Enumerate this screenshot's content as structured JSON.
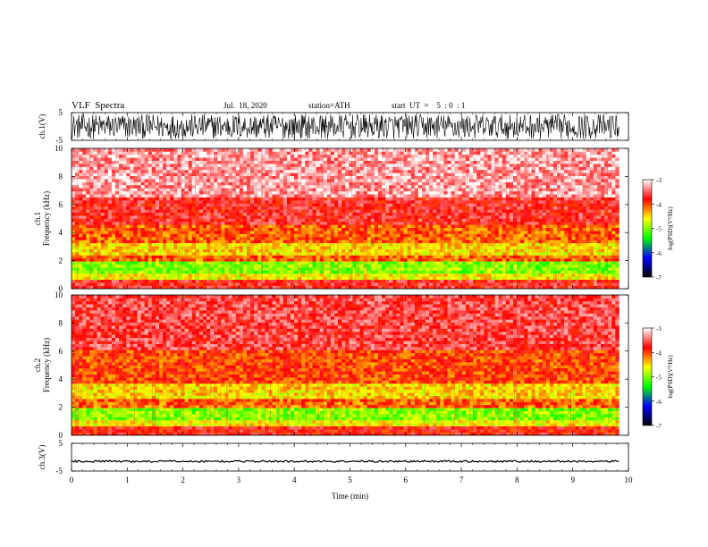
{
  "header": {
    "title": "VLF  Spectra",
    "date": "Jul.  18, 2020",
    "station": "station=ATH",
    "start_ut": "start  UT  =    5  : 0  : 1"
  },
  "chart_data": [
    {
      "type": "line",
      "panel": "ch1-waveform",
      "ylabel": "ch.1(V)",
      "ylim": [
        -5,
        5
      ],
      "ytick_labels": [
        "5",
        "-5"
      ],
      "description": "dense noisy waveform spanning roughly -4.5 to 4.5 V",
      "amplitude": 4.5
    },
    {
      "type": "heatmap",
      "panel": "ch1-spectrogram",
      "ylabel": "ch.1\nFrequency  (kHz)",
      "ylim": [
        0,
        10
      ],
      "yticks": [
        0,
        2,
        4,
        6,
        8,
        10
      ],
      "bands": [
        {
          "from": 0,
          "to": 0.6,
          "level": -3.7
        },
        {
          "from": 0.6,
          "to": 1.0,
          "level": -4.6
        },
        {
          "from": 1.0,
          "to": 1.9,
          "level": -5.0
        },
        {
          "from": 1.9,
          "to": 2.4,
          "level": -4.1
        },
        {
          "from": 2.4,
          "to": 3.3,
          "level": -4.5
        },
        {
          "from": 3.3,
          "to": 4.5,
          "level": -4.1
        },
        {
          "from": 4.5,
          "to": 6.5,
          "level": -3.7
        },
        {
          "from": 6.5,
          "to": 10,
          "level": -3.3
        }
      ]
    },
    {
      "type": "heatmap",
      "panel": "ch2-spectrogram",
      "ylabel": "ch.2\nFrequency  (kHz)",
      "ylim": [
        0,
        10
      ],
      "yticks": [
        0,
        2,
        4,
        6,
        8,
        10
      ],
      "bands": [
        {
          "from": 0,
          "to": 0.6,
          "level": -3.8
        },
        {
          "from": 0.6,
          "to": 1.0,
          "level": -4.6
        },
        {
          "from": 1.0,
          "to": 1.9,
          "level": -5.0
        },
        {
          "from": 1.9,
          "to": 2.6,
          "level": -4.1
        },
        {
          "from": 2.6,
          "to": 3.8,
          "level": -4.5
        },
        {
          "from": 3.8,
          "to": 6.0,
          "level": -4.0
        },
        {
          "from": 6.0,
          "to": 10,
          "level": -3.6
        }
      ]
    },
    {
      "type": "line",
      "panel": "ch3-waveform",
      "ylabel": "ch.3(V)",
      "ylim": [
        -5,
        5
      ],
      "ytick_labels": [
        "5",
        "-5"
      ],
      "description": "near-constant trace at about -1.5 V",
      "level": -1.5
    }
  ],
  "x_axis": {
    "label": "Time  (min)",
    "range": [
      0,
      10
    ],
    "data_end": 9.83,
    "ticks": [
      "0",
      "1",
      "2",
      "3",
      "4",
      "5",
      "6",
      "7",
      "8",
      "9",
      "10"
    ]
  },
  "colorbar": {
    "label": "log(PSD)(V²/Hz)",
    "range": [
      -7,
      -3
    ],
    "tick_labels": [
      "-3",
      "-4",
      "-5",
      "-6",
      "-7"
    ],
    "colors": [
      "#ffffff",
      "#ff0000",
      "#ffff00",
      "#00ff00",
      "#0000ff",
      "#000000"
    ]
  }
}
